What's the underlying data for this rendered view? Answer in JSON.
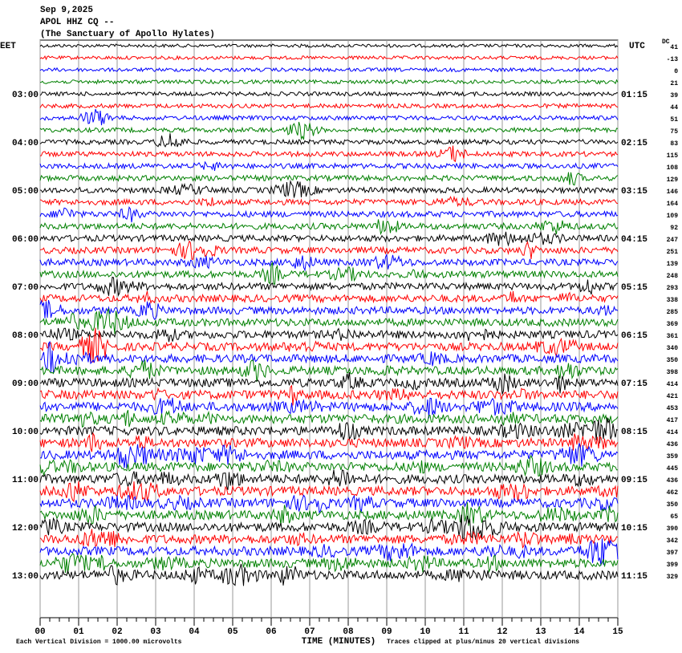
{
  "chart_data": {
    "type": "helicorder",
    "date": "Sep 9,2025",
    "station": "APOL HHZ CQ --",
    "site": "(The Sanctuary of Apollo Hylates)",
    "left_zone": "EET",
    "right_zone": "UTC",
    "dc_label": "DC",
    "left_times": [
      "03:00",
      "04:00",
      "05:00",
      "06:00",
      "07:00",
      "08:00",
      "09:00",
      "10:00",
      "11:00",
      "12:00",
      "13:00"
    ],
    "right_times": [
      "01:15",
      "02:15",
      "03:15",
      "04:15",
      "05:15",
      "06:15",
      "07:15",
      "08:15",
      "09:15",
      "10:15",
      "11:15"
    ],
    "dc_offsets": [
      41,
      -13,
      0,
      21,
      39,
      44,
      51,
      75,
      83,
      115,
      108,
      129,
      146,
      164,
      109,
      92,
      247,
      251,
      139,
      248,
      293,
      338,
      285,
      369,
      361,
      340,
      350,
      398,
      414,
      421,
      453,
      417,
      414,
      436,
      359,
      445,
      436,
      462,
      350,
      65,
      390,
      342,
      397,
      399,
      329
    ],
    "trace_colors": [
      "#000000",
      "#ff0000",
      "#0000ff",
      "#008000"
    ],
    "xlabel": "TIME (MINUTES)",
    "scale_note": "Each Vertical Division = 1000.00 microvolts",
    "clip_note": "Traces clipped at plus/minus 20 vertical divisions",
    "xlim": [
      0,
      15
    ],
    "xticks": [
      {
        "value": 0,
        "label": "00"
      },
      {
        "value": 1,
        "label": "01"
      },
      {
        "value": 2,
        "label": "02"
      },
      {
        "value": 3,
        "label": "03"
      },
      {
        "value": 4,
        "label": "04"
      },
      {
        "value": 5,
        "label": "05"
      },
      {
        "value": 6,
        "label": "06"
      },
      {
        "value": 7,
        "label": "07"
      },
      {
        "value": 8,
        "label": "08"
      },
      {
        "value": 9,
        "label": "09"
      },
      10,
      11,
      12,
      13,
      14,
      15
    ]
  }
}
